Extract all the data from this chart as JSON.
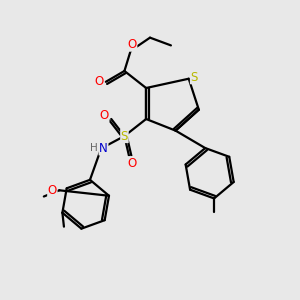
{
  "background_color": "#e8e8e8",
  "atom_colors": {
    "S": "#b8b800",
    "O": "#ff0000",
    "N": "#0000cc",
    "C": "#000000",
    "H": "#666666"
  },
  "figsize": [
    3.0,
    3.0
  ],
  "dpi": 100,
  "lw": 1.6
}
